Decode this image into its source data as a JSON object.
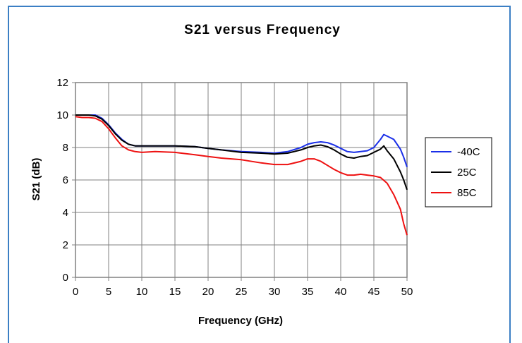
{
  "chart_data": {
    "type": "line",
    "title": "S21 versus Frequency",
    "xlabel": "Frequency (GHz)",
    "ylabel": "S21 (dB)",
    "xlim": [
      0,
      50
    ],
    "ylim": [
      0,
      12
    ],
    "xticks": [
      0,
      5,
      10,
      15,
      20,
      25,
      30,
      35,
      40,
      45,
      50
    ],
    "yticks": [
      0,
      2,
      4,
      6,
      8,
      10,
      12
    ],
    "grid": true,
    "legend_position": "right",
    "series": [
      {
        "name": "-40C",
        "color": "#1a2fe8",
        "x": [
          0,
          1,
          2,
          3,
          4,
          5,
          6,
          7,
          8,
          9,
          10,
          12,
          15,
          18,
          20,
          22,
          25,
          28,
          30,
          32,
          34,
          35,
          36,
          37,
          38,
          39,
          40,
          41,
          42,
          43,
          44,
          45,
          46,
          46.5,
          47,
          48,
          49,
          49.5,
          50
        ],
        "y": [
          10.0,
          10.0,
          10.0,
          10.0,
          9.8,
          9.4,
          8.9,
          8.5,
          8.2,
          8.1,
          8.1,
          8.1,
          8.1,
          8.05,
          7.95,
          7.85,
          7.75,
          7.7,
          7.65,
          7.75,
          8.0,
          8.2,
          8.3,
          8.35,
          8.3,
          8.15,
          7.95,
          7.75,
          7.7,
          7.75,
          7.8,
          8.0,
          8.5,
          8.8,
          8.7,
          8.5,
          7.9,
          7.4,
          6.8
        ]
      },
      {
        "name": "25C",
        "color": "#000000",
        "x": [
          0,
          1,
          2,
          3,
          4,
          5,
          6,
          7,
          8,
          9,
          10,
          12,
          15,
          18,
          20,
          22,
          25,
          28,
          30,
          32,
          34,
          35,
          36,
          37,
          38,
          39,
          40,
          41,
          42,
          43,
          44,
          45,
          46,
          46.5,
          47,
          48,
          49,
          49.5,
          50
        ],
        "y": [
          10.0,
          10.0,
          10.0,
          9.95,
          9.75,
          9.35,
          8.85,
          8.45,
          8.2,
          8.1,
          8.1,
          8.1,
          8.1,
          8.05,
          7.95,
          7.85,
          7.7,
          7.65,
          7.6,
          7.65,
          7.85,
          8.0,
          8.1,
          8.15,
          8.05,
          7.85,
          7.6,
          7.4,
          7.35,
          7.45,
          7.5,
          7.7,
          7.9,
          8.1,
          7.8,
          7.3,
          6.5,
          6.0,
          5.4
        ]
      },
      {
        "name": "85C",
        "color": "#ee1111",
        "x": [
          0,
          1,
          2,
          3,
          4,
          5,
          6,
          7,
          8,
          9,
          10,
          12,
          15,
          18,
          20,
          22,
          25,
          28,
          30,
          32,
          34,
          35,
          36,
          37,
          38,
          39,
          40,
          41,
          42,
          43,
          44,
          45,
          46,
          47,
          48,
          49,
          49.5,
          50
        ],
        "y": [
          9.9,
          9.85,
          9.85,
          9.8,
          9.6,
          9.15,
          8.6,
          8.1,
          7.85,
          7.75,
          7.7,
          7.75,
          7.7,
          7.55,
          7.45,
          7.35,
          7.25,
          7.05,
          6.95,
          6.95,
          7.15,
          7.3,
          7.3,
          7.15,
          6.9,
          6.65,
          6.45,
          6.3,
          6.3,
          6.35,
          6.3,
          6.25,
          6.15,
          5.8,
          5.1,
          4.2,
          3.3,
          2.6
        ]
      }
    ]
  }
}
